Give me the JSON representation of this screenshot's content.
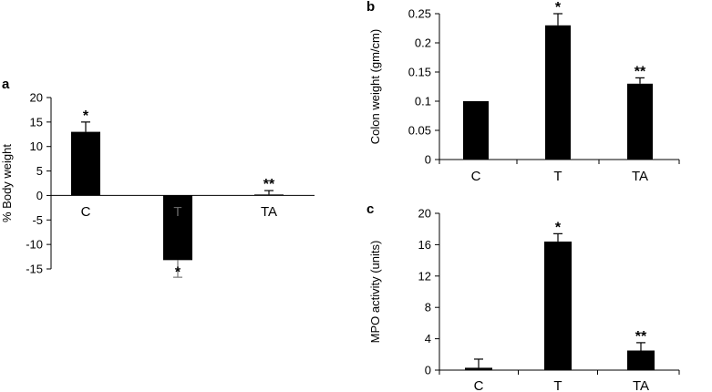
{
  "chart_data": [
    {
      "panel": "a",
      "type": "bar",
      "categories": [
        "C",
        "T",
        "TA"
      ],
      "values": [
        13,
        -13.2,
        0.2
      ],
      "errors": [
        2,
        3.5,
        0.8
      ],
      "significance": [
        "*",
        "*",
        "**"
      ],
      "ylabel": "% Body weight",
      "ylim": [
        -15,
        20
      ],
      "yticks": [
        20,
        15,
        10,
        5,
        0,
        -5,
        -10,
        -15
      ],
      "grid": false
    },
    {
      "panel": "b",
      "type": "bar",
      "categories": [
        "C",
        "T",
        "TA"
      ],
      "values": [
        0.1,
        0.23,
        0.13
      ],
      "errors": [
        0,
        0.02,
        0.01
      ],
      "significance": [
        "",
        "*",
        "**"
      ],
      "ylabel": "Colon weight (gm/cm)",
      "ylim": [
        0,
        0.25
      ],
      "yticks": [
        0.25,
        0.2,
        0.15,
        0.1,
        0.05,
        0
      ],
      "grid": false
    },
    {
      "panel": "c",
      "type": "bar",
      "categories": [
        "C",
        "T",
        "TA"
      ],
      "values": [
        0.3,
        16.4,
        2.5
      ],
      "errors": [
        1.1,
        1.0,
        1.0
      ],
      "significance": [
        "",
        "*",
        "**"
      ],
      "ylabel": "MPO activity (units)",
      "ylim": [
        0,
        20
      ],
      "yticks": [
        20,
        16,
        12,
        8,
        4,
        0
      ],
      "grid": false
    }
  ]
}
